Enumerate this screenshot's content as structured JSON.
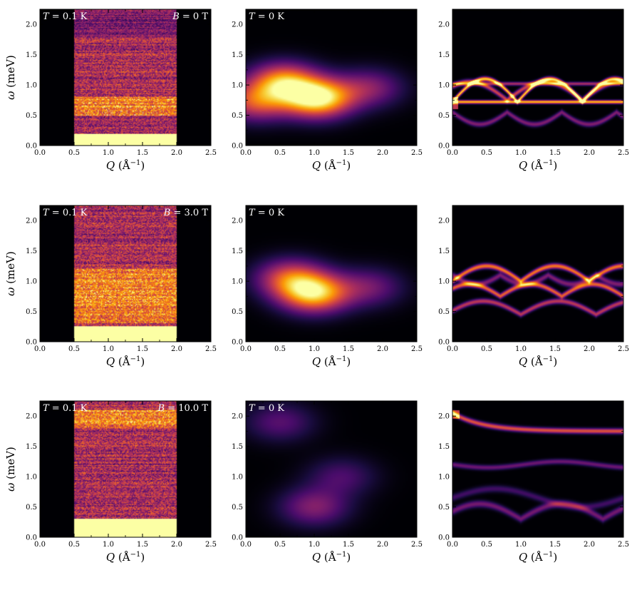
{
  "chart_data": {
    "type": "heatmap",
    "layout": "3x3 grid; rows = field B, columns = experiment / T=0 K calc / spectrum",
    "x_axis": {
      "label": "Q (Å⁻¹)",
      "range": [
        0.0,
        2.5
      ],
      "ticks": [
        "0.0",
        "0.5",
        "1.0",
        "1.5",
        "2.0",
        "2.5"
      ]
    },
    "y_axis": {
      "label": "ω (meV)",
      "range": [
        0.0,
        2.25
      ],
      "ticks": [
        "0.0",
        "0.5",
        "1.0",
        "1.5",
        "2.0"
      ]
    },
    "colormap": [
      "#000004",
      "#1b0c41",
      "#4a0c6b",
      "#781c6d",
      "#a52c60",
      "#cf4446",
      "#ed6925",
      "#fb9b06",
      "#f7d13d",
      "#fcffa4"
    ],
    "background_color": "#000004",
    "rows": [
      {
        "field_B": 0.0,
        "panels": [
          {
            "kind": "experiment",
            "annotation_left": "T = 0.1 K",
            "annotation_right": "B = 0 T",
            "q_coverage": [
              0.5,
              2.0
            ],
            "elastic_cutoff_meV": 0.2,
            "band_max_meV": 2.25,
            "bright_band_meV": [
              0.5,
              0.8
            ]
          },
          {
            "kind": "calc_broadened",
            "annotation_left": "T = 0 K",
            "features": [
              {
                "q": 0.55,
                "w": 1.05,
                "amp": 0.75
              },
              {
                "q": 1.05,
                "w": 0.78,
                "amp": 1.0
              },
              {
                "q": 0.15,
                "w": 0.72,
                "amp": 0.55
              },
              {
                "q": 1.8,
                "w": 0.95,
                "amp": 0.35
              }
            ]
          },
          {
            "kind": "calc_lines",
            "branches": [
              {
                "flat_meV": 0.72
              },
              {
                "start_meV": 0.72,
                "peak_meV": 1.12,
                "period": 0.95
              },
              {
                "start_meV": 0.55,
                "peak_meV": 1.0,
                "period": 1.1
              }
            ]
          }
        ]
      },
      {
        "field_B": 3.0,
        "panels": [
          {
            "kind": "experiment",
            "annotation_left": "T = 0.1 K",
            "annotation_right": "B = 3.0 T",
            "q_coverage": [
              0.5,
              2.0
            ],
            "elastic_cutoff_meV": 0.25,
            "band_max_meV": 2.25,
            "bright_band_meV": [
              0.3,
              1.2
            ]
          },
          {
            "kind": "calc_broadened",
            "annotation_left": "T = 0 K",
            "features": [
              {
                "q": 0.65,
                "w": 1.05,
                "amp": 0.55
              },
              {
                "q": 1.0,
                "w": 0.8,
                "amp": 0.85
              },
              {
                "q": 1.8,
                "w": 0.9,
                "amp": 0.3
              }
            ]
          },
          {
            "kind": "calc_lines",
            "branches": [
              {
                "start_meV": 1.0,
                "peak_meV": 1.28
              },
              {
                "start_meV": 0.75,
                "peak_meV": 0.95
              },
              {
                "start_meV": 0.45,
                "peak_meV": 0.65
              }
            ]
          }
        ]
      },
      {
        "field_B": 10.0,
        "panels": [
          {
            "kind": "experiment",
            "annotation_left": "T = 0.1 K",
            "annotation_right": "B = 10.0 T",
            "q_coverage": [
              0.5,
              2.0
            ],
            "elastic_cutoff_meV": 0.3,
            "band_max_meV": 2.25,
            "bright_band_meV": [
              1.8,
              2.1
            ]
          },
          {
            "kind": "calc_broadened",
            "annotation_left": "T = 0 K",
            "features": [
              {
                "q": 0.5,
                "w": 1.9,
                "amp": 0.25
              },
              {
                "q": 1.0,
                "w": 0.5,
                "amp": 0.35
              },
              {
                "q": 1.4,
                "w": 1.0,
                "amp": 0.22
              }
            ]
          },
          {
            "kind": "calc_lines",
            "branches": [
              {
                "start_meV": 2.05,
                "end_meV": 1.75
              },
              {
                "flat_meV": 1.2
              },
              {
                "start_meV": 0.25,
                "peak_meV": 0.6
              }
            ]
          }
        ]
      }
    ]
  }
}
